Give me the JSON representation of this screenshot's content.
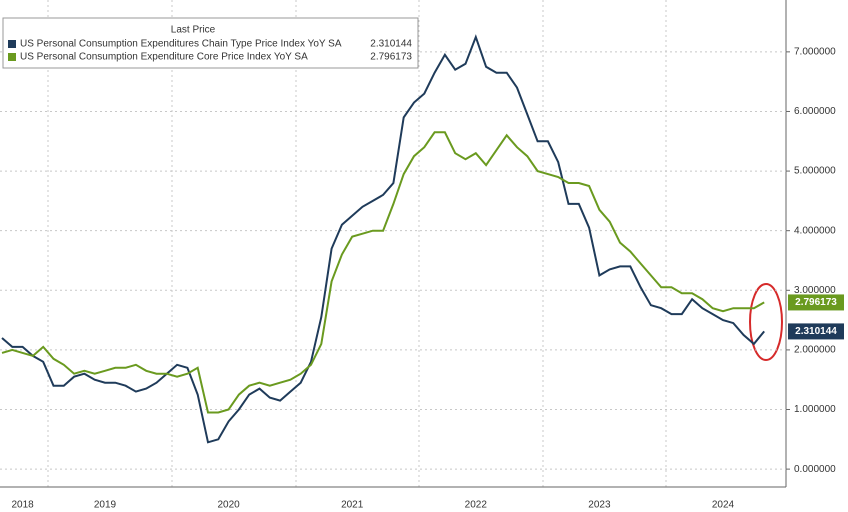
{
  "chart_data": {
    "type": "line",
    "legend_title": "Last Price",
    "categories": [
      null,
      null,
      "2018",
      null,
      null,
      null,
      null,
      null,
      null,
      null,
      "2019",
      null,
      null,
      null,
      null,
      null,
      null,
      null,
      null,
      null,
      null,
      null,
      "2020",
      null,
      null,
      null,
      null,
      null,
      null,
      null,
      null,
      null,
      null,
      null,
      "2021",
      null,
      null,
      null,
      null,
      null,
      null,
      null,
      null,
      null,
      null,
      null,
      "2022",
      null,
      null,
      null,
      null,
      null,
      null,
      null,
      null,
      null,
      null,
      null,
      "2023",
      null,
      null,
      null,
      null,
      null,
      null,
      null,
      null,
      null,
      null,
      null,
      "2024",
      null,
      null,
      null,
      null
    ],
    "series": [
      {
        "name": "US Personal Consumption Expenditures Chain Type Price Index YoY SA",
        "color": "#1f3b5a",
        "values": [
          2.2,
          2.05,
          2.05,
          1.9,
          1.8,
          1.4,
          1.4,
          1.55,
          1.6,
          1.5,
          1.45,
          1.45,
          1.4,
          1.3,
          1.35,
          1.45,
          1.6,
          1.75,
          1.7,
          1.25,
          0.45,
          0.5,
          0.8,
          1.0,
          1.25,
          1.35,
          1.2,
          1.15,
          1.3,
          1.45,
          1.8,
          2.55,
          3.7,
          4.1,
          4.25,
          4.4,
          4.5,
          4.6,
          4.8,
          5.9,
          6.15,
          6.3,
          6.65,
          6.95,
          6.7,
          6.8,
          7.25,
          6.75,
          6.65,
          6.65,
          6.4,
          5.95,
          5.5,
          5.5,
          5.15,
          4.45,
          4.45,
          4.05,
          3.25,
          3.35,
          3.4,
          3.4,
          3.05,
          2.75,
          2.7,
          2.6,
          2.6,
          2.85,
          2.7,
          2.6,
          2.5,
          2.45,
          2.25,
          2.1,
          2.310144
        ]
      },
      {
        "name": "US Personal Consumption Expenditure Core Price Index YoY SA",
        "color": "#6a9a1f",
        "values": [
          1.95,
          2.0,
          1.95,
          1.9,
          2.05,
          1.85,
          1.75,
          1.6,
          1.65,
          1.6,
          1.65,
          1.7,
          1.7,
          1.75,
          1.65,
          1.6,
          1.6,
          1.55,
          1.6,
          1.7,
          0.95,
          0.95,
          1.0,
          1.25,
          1.4,
          1.45,
          1.4,
          1.45,
          1.5,
          1.6,
          1.75,
          2.1,
          3.15,
          3.6,
          3.9,
          3.95,
          4.0,
          4.0,
          4.45,
          4.95,
          5.25,
          5.4,
          5.65,
          5.65,
          5.3,
          5.2,
          5.3,
          5.1,
          5.35,
          5.6,
          5.4,
          5.25,
          5.0,
          4.95,
          4.9,
          4.8,
          4.8,
          4.75,
          4.35,
          4.15,
          3.8,
          3.65,
          3.45,
          3.25,
          3.05,
          3.05,
          2.95,
          2.95,
          2.85,
          2.7,
          2.65,
          2.7,
          2.7,
          2.7,
          2.796173
        ]
      }
    ],
    "ylim": [
      -0.3,
      7.87
    ],
    "yticks": [
      {
        "value": 0,
        "label": "0.000000"
      },
      {
        "value": 1,
        "label": "1.000000"
      },
      {
        "value": 2,
        "label": "2.000000"
      },
      {
        "value": 3,
        "label": "3.000000"
      },
      {
        "value": 4,
        "label": "4.000000"
      },
      {
        "value": 5,
        "label": "5.000000"
      },
      {
        "value": 6,
        "label": "6.000000"
      },
      {
        "value": 7,
        "label": "7.000000"
      }
    ],
    "grid": true
  }
}
